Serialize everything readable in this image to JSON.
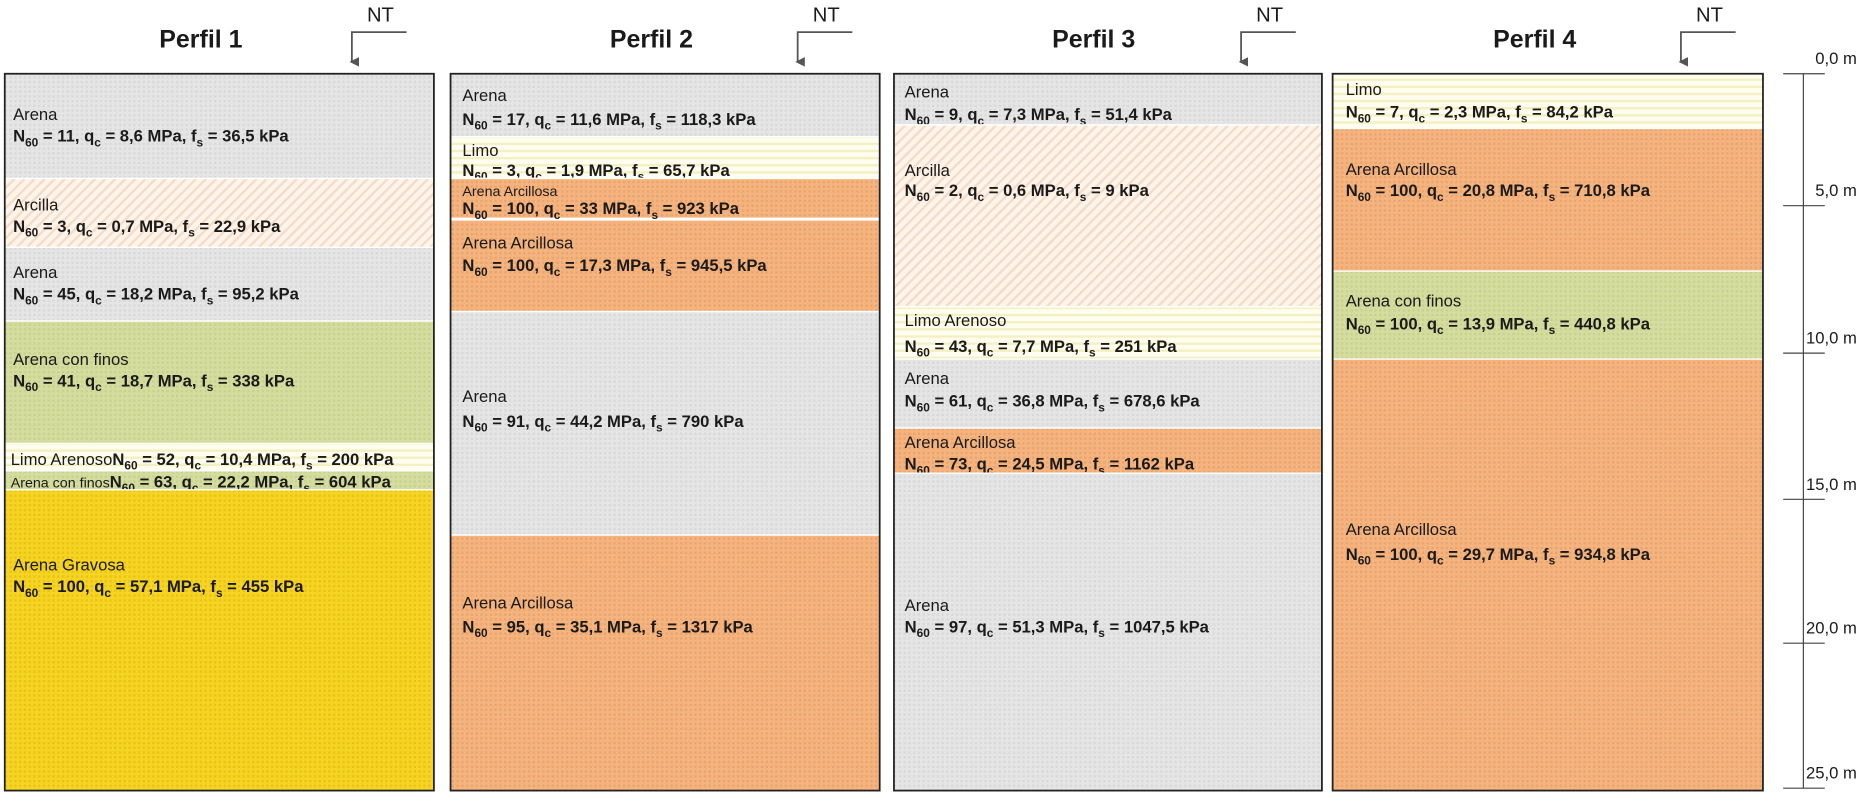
{
  "symbols": {
    "n": "N",
    "n_sub": "60",
    "qc": "q",
    "qc_sub": "c",
    "fs": "f",
    "fs_sub": "s",
    "equals": " = ",
    "sep": ", ",
    "mpa": " MPa",
    "kpa": " kPa"
  },
  "depth_axis": [
    "0,0 m",
    "5,0 m",
    "10,0 m",
    "15,0 m",
    "20,0 m",
    "25,0 m"
  ],
  "profiles": [
    {
      "title": "Perfil 1",
      "nt": "NT",
      "layers": [
        {
          "name": "Arena",
          "n60": "11",
          "qc": "8,6",
          "fs": "36,5"
        },
        {
          "name": "Arcilla",
          "n60": "3",
          "qc": "0,7",
          "fs": "22,9"
        },
        {
          "name": "Arena",
          "n60": "45",
          "qc": "18,2",
          "fs": "95,2"
        },
        {
          "name": "Arena con finos",
          "n60": "41",
          "qc": "18,7",
          "fs": "338"
        },
        {
          "name": "Limo Arenoso",
          "n60": "52",
          "qc": "10,4",
          "fs": "200"
        },
        {
          "name": "Arena con finos",
          "n60": "63",
          "qc": "22,2",
          "fs": "604"
        },
        {
          "name": "Arena Gravosa",
          "n60": "100",
          "qc": "57,1",
          "fs": "455"
        }
      ]
    },
    {
      "title": "Perfil 2",
      "nt": "NT",
      "layers": [
        {
          "name": "Arena",
          "n60": "17",
          "qc": "11,6",
          "fs": "118,3"
        },
        {
          "name": "Limo",
          "n60": "3",
          "qc": "1,9",
          "fs": "65,7"
        },
        {
          "name": "Arena Arcillosa",
          "n60": "100",
          "qc": "33",
          "fs": "923"
        },
        {
          "name": "Arena Arcillosa",
          "n60": "100",
          "qc": "17,3",
          "fs": "945,5"
        },
        {
          "name": "Arena",
          "n60": "91",
          "qc": "44,2",
          "fs": "790"
        },
        {
          "name": "Arena Arcillosa",
          "n60": "95",
          "qc": "35,1",
          "fs": "1317"
        }
      ]
    },
    {
      "title": "Perfil 3",
      "nt": "NT",
      "layers": [
        {
          "name": "Arena",
          "n60": "9",
          "qc": "7,3",
          "fs": "51,4"
        },
        {
          "name": "Arcilla",
          "n60": "2",
          "qc": "0,6",
          "fs": "9"
        },
        {
          "name": "Limo Arenoso",
          "n60": "43",
          "qc": "7,7",
          "fs": "251"
        },
        {
          "name": "Arena",
          "n60": "61",
          "qc": "36,8",
          "fs": "678,6"
        },
        {
          "name": "Arena Arcillosa",
          "n60": "73",
          "qc": "24,5",
          "fs": "1162"
        },
        {
          "name": "Arena",
          "n60": "97",
          "qc": "51,3",
          "fs": "1047,5"
        }
      ]
    },
    {
      "title": "Perfil 4",
      "nt": "NT",
      "layers": [
        {
          "name": "Limo",
          "n60": "7",
          "qc": "2,3",
          "fs": "84,2"
        },
        {
          "name": "Arena Arcillosa",
          "n60": "100",
          "qc": "20,8",
          "fs": "710,8"
        },
        {
          "name": "Arena con finos",
          "n60": "100",
          "qc": "13,9",
          "fs": "440,8"
        },
        {
          "name": "Arena Arcillosa",
          "n60": "100",
          "qc": "29,7",
          "fs": "934,8"
        }
      ]
    }
  ]
}
